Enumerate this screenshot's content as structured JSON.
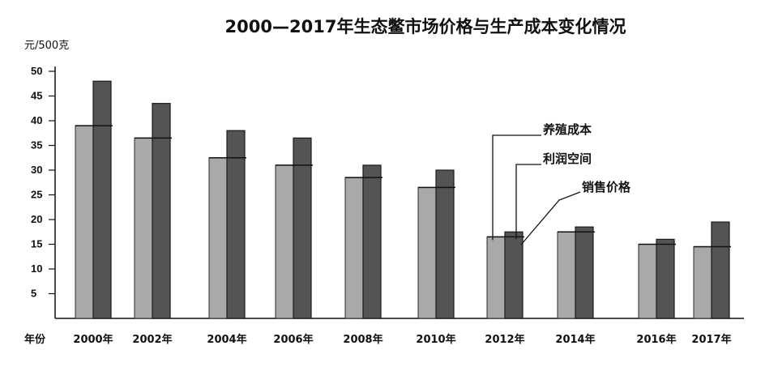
{
  "chart_data": {
    "type": "bar",
    "title": "2000—2017年生态鳖市场价格与生产成本变化情况",
    "ylabel": "元/500克",
    "xlabel": "年份",
    "ylim": [
      0,
      50
    ],
    "yticks": [
      5,
      10,
      15,
      20,
      25,
      30,
      35,
      40,
      45,
      50
    ],
    "categories": [
      "2000年",
      "2002年",
      "2004年",
      "2006年",
      "2008年",
      "2010年",
      "2012年",
      "2014年",
      "2016年",
      "2017年"
    ],
    "series": [
      {
        "name": "养殖成本",
        "values": [
          39,
          36.5,
          32.5,
          31,
          28.5,
          26.5,
          16.5,
          17.5,
          15,
          14.5
        ]
      },
      {
        "name": "销售价格",
        "values": [
          48,
          43.5,
          38,
          36.5,
          31,
          30,
          17.5,
          18.5,
          16,
          19.5
        ]
      }
    ],
    "annotations": [
      "养殖成本",
      "利润空间",
      "销售价格"
    ],
    "colors": {
      "cost": "#a9a9a9",
      "price": "#545454",
      "border": "#1a1a1a",
      "axis": "#111111"
    },
    "grid": false
  }
}
